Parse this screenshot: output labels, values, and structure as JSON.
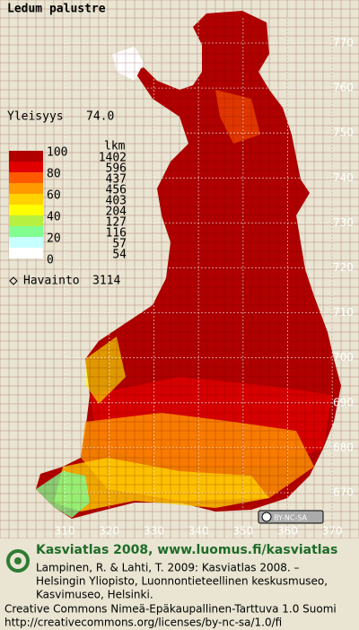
{
  "header": {
    "species": "Ledum palustre",
    "frequency_label": "Yleisyys",
    "frequency": "74.0"
  },
  "legend": {
    "scale_labels": [
      "100",
      "80",
      "60",
      "40",
      "20",
      "0"
    ],
    "colors": [
      "#b00000",
      "#e00000",
      "#ff5a00",
      "#ff9a00",
      "#ffd200",
      "#ffff00",
      "#b8f040",
      "#80ff90",
      "#c8ffff",
      "#ffffff"
    ],
    "count_header": "lkm",
    "counts": [
      "1402",
      "596",
      "437",
      "456",
      "403",
      "204",
      "127",
      "116",
      "57",
      "54"
    ],
    "observation_label": "Havainto",
    "observations": "3114"
  },
  "map": {
    "northing_labels": [
      "770",
      "760",
      "750",
      "740",
      "730",
      "720",
      "710",
      "700",
      "690",
      "680",
      "670"
    ],
    "easting_labels": [
      "310",
      "320",
      "330",
      "340",
      "350",
      "360",
      "370"
    ]
  },
  "license_badge": "BY-NC-SA",
  "footer": {
    "title": "Kasviatlas 2008, www.luomus.fi/kasviatlas",
    "citation": [
      "Lampinen, R. & Lahti, T. 2009: Kasviatlas 2008. –",
      "Helsingin Yliopisto, Luonnontieteellinen keskusmuseo,",
      "Kasvimuseo, Helsinki."
    ],
    "license": [
      "Creative Commons Nimeä-Epäkaupallinen-Tarttuva 1.0 Suomi",
      "http://creativecommons.org/licenses/by-nc-sa/1.0/fi"
    ]
  }
}
